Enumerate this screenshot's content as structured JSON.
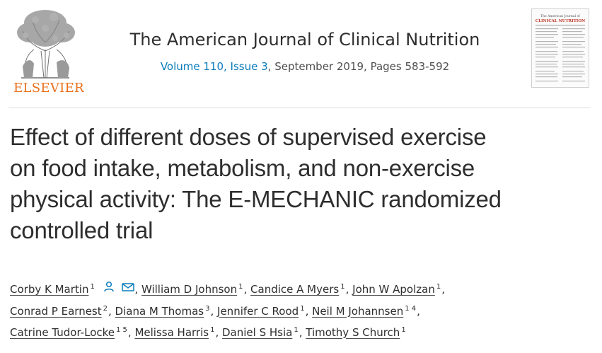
{
  "header": {
    "publisher": "ELSEVIER",
    "journal_title": "The American Journal of Clinical Nutrition",
    "volume_issue_link": "Volume 110, Issue 3",
    "date_pages": ", September 2019, Pages 583-592",
    "cover_title_line1": "The American Journal of",
    "cover_title_line2": "CLINICAL NUTRITION"
  },
  "article": {
    "title_line1": "Effect of different doses of supervised exercise",
    "title_line2": "on food intake, metabolism, and non-exercise",
    "title_line3": "physical activity: The E-MECHANIC randomized",
    "title_line4": "controlled trial"
  },
  "authors": [
    {
      "name": "Corby K Martin",
      "aff": "1"
    },
    {
      "name": "William D Johnson",
      "aff": "1"
    },
    {
      "name": "Candice A Myers",
      "aff": "1"
    },
    {
      "name": "John W Apolzan",
      "aff": "1"
    },
    {
      "name": "Conrad P Earnest",
      "aff": "2"
    },
    {
      "name": "Diana M Thomas",
      "aff": "3"
    },
    {
      "name": "Jennifer C Rood",
      "aff": "1"
    },
    {
      "name": "Neil M Johannsen",
      "aff": "1 4"
    },
    {
      "name": "Catrine Tudor-Locke",
      "aff": "1 5"
    },
    {
      "name": "Melissa Harris",
      "aff": "1"
    },
    {
      "name": "Daniel S Hsia",
      "aff": "1"
    },
    {
      "name": "Timothy S Church",
      "aff": "1"
    }
  ],
  "separator": ", ",
  "icons": {
    "person": "person-icon",
    "envelope": "envelope-icon",
    "logo": "elsevier-tree-logo"
  },
  "colors": {
    "link": "#0c7dbb",
    "publisher": "#e9711c",
    "text": "#2e2e2e"
  }
}
